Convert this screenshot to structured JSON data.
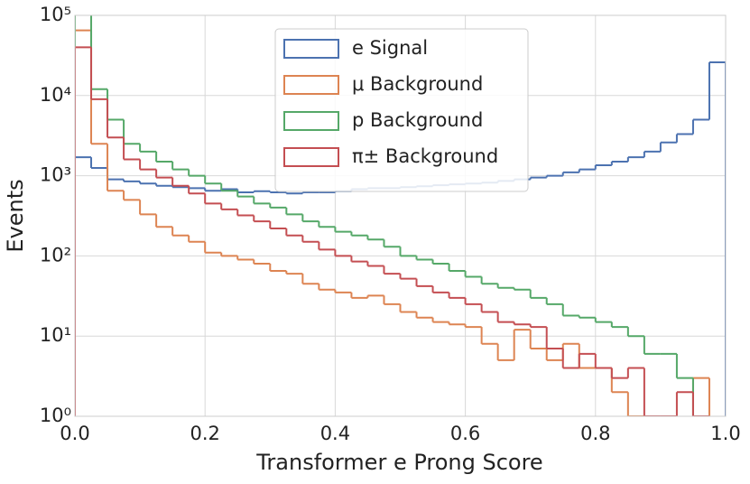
{
  "chart_data": {
    "type": "histogram",
    "x_label": "Transformer e Prong Score",
    "y_label": "Events",
    "log_y": true,
    "grid": true,
    "legend": "upper center",
    "xlim": [
      0,
      1
    ],
    "ylim": [
      1,
      100000
    ],
    "xticks": [
      {
        "value": 0,
        "label": "0.0"
      },
      0.2,
      0.4,
      0.6,
      0.8,
      {
        "value": 1,
        "label": "1.0"
      }
    ],
    "yticks": [
      {
        "value": 1,
        "label": "10⁰"
      },
      {
        "value": 10,
        "label": "10¹"
      },
      {
        "value": 100,
        "label": "10²"
      },
      {
        "value": 1000,
        "label": "10³"
      },
      {
        "value": 10000,
        "label": "10⁴"
      },
      {
        "value": 100000,
        "label": "10⁵"
      }
    ],
    "bins": [
      0,
      0.025,
      0.05,
      0.075,
      0.1,
      0.125,
      0.15,
      0.175,
      0.2,
      0.225,
      0.25,
      0.275,
      0.3,
      0.325,
      0.35,
      0.375,
      0.4,
      0.425,
      0.45,
      0.475,
      0.5,
      0.525,
      0.55,
      0.575,
      0.6,
      0.625,
      0.65,
      0.675,
      0.7,
      0.725,
      0.75,
      0.775,
      0.8,
      0.825,
      0.85,
      0.875,
      0.9,
      0.925,
      0.95,
      0.975,
      1
    ],
    "series": [
      {
        "name": "e Signal",
        "color": "#4c72b0",
        "values": [
          1700,
          1250,
          900,
          850,
          800,
          750,
          720,
          700,
          650,
          680,
          620,
          640,
          620,
          600,
          620,
          620,
          640,
          680,
          700,
          700,
          720,
          740,
          760,
          780,
          800,
          820,
          860,
          900,
          950,
          1000,
          1100,
          1200,
          1350,
          1500,
          1700,
          2000,
          2600,
          3300,
          5000,
          26000
        ]
      },
      {
        "name": "μ Background",
        "color": "#dd8452",
        "values": [
          65000,
          2500,
          650,
          500,
          330,
          230,
          180,
          150,
          110,
          100,
          90,
          80,
          65,
          60,
          45,
          38,
          35,
          30,
          32,
          25,
          20,
          17,
          15,
          14,
          13,
          8,
          5,
          12,
          7,
          5,
          8,
          4,
          4,
          2,
          1,
          1,
          1,
          null,
          3,
          null
        ]
      },
      {
        "name": "p Background",
        "color": "#55a868",
        "values": [
          150000,
          12000,
          5000,
          2500,
          2000,
          1500,
          1200,
          1000,
          800,
          650,
          550,
          450,
          400,
          330,
          270,
          230,
          200,
          180,
          160,
          130,
          100,
          90,
          80,
          65,
          55,
          45,
          40,
          38,
          30,
          25,
          18,
          17,
          15,
          13,
          10,
          6,
          6,
          3,
          1,
          null
        ]
      },
      {
        "name": "π± Background",
        "color": "#c44e52",
        "values": [
          40000,
          9000,
          3000,
          1600,
          1200,
          950,
          750,
          600,
          450,
          380,
          320,
          270,
          220,
          180,
          150,
          120,
          100,
          85,
          75,
          60,
          52,
          42,
          35,
          30,
          25,
          20,
          15,
          14,
          13,
          7,
          4,
          6,
          4,
          3,
          4,
          1,
          1,
          2,
          1,
          null
        ]
      }
    ]
  }
}
